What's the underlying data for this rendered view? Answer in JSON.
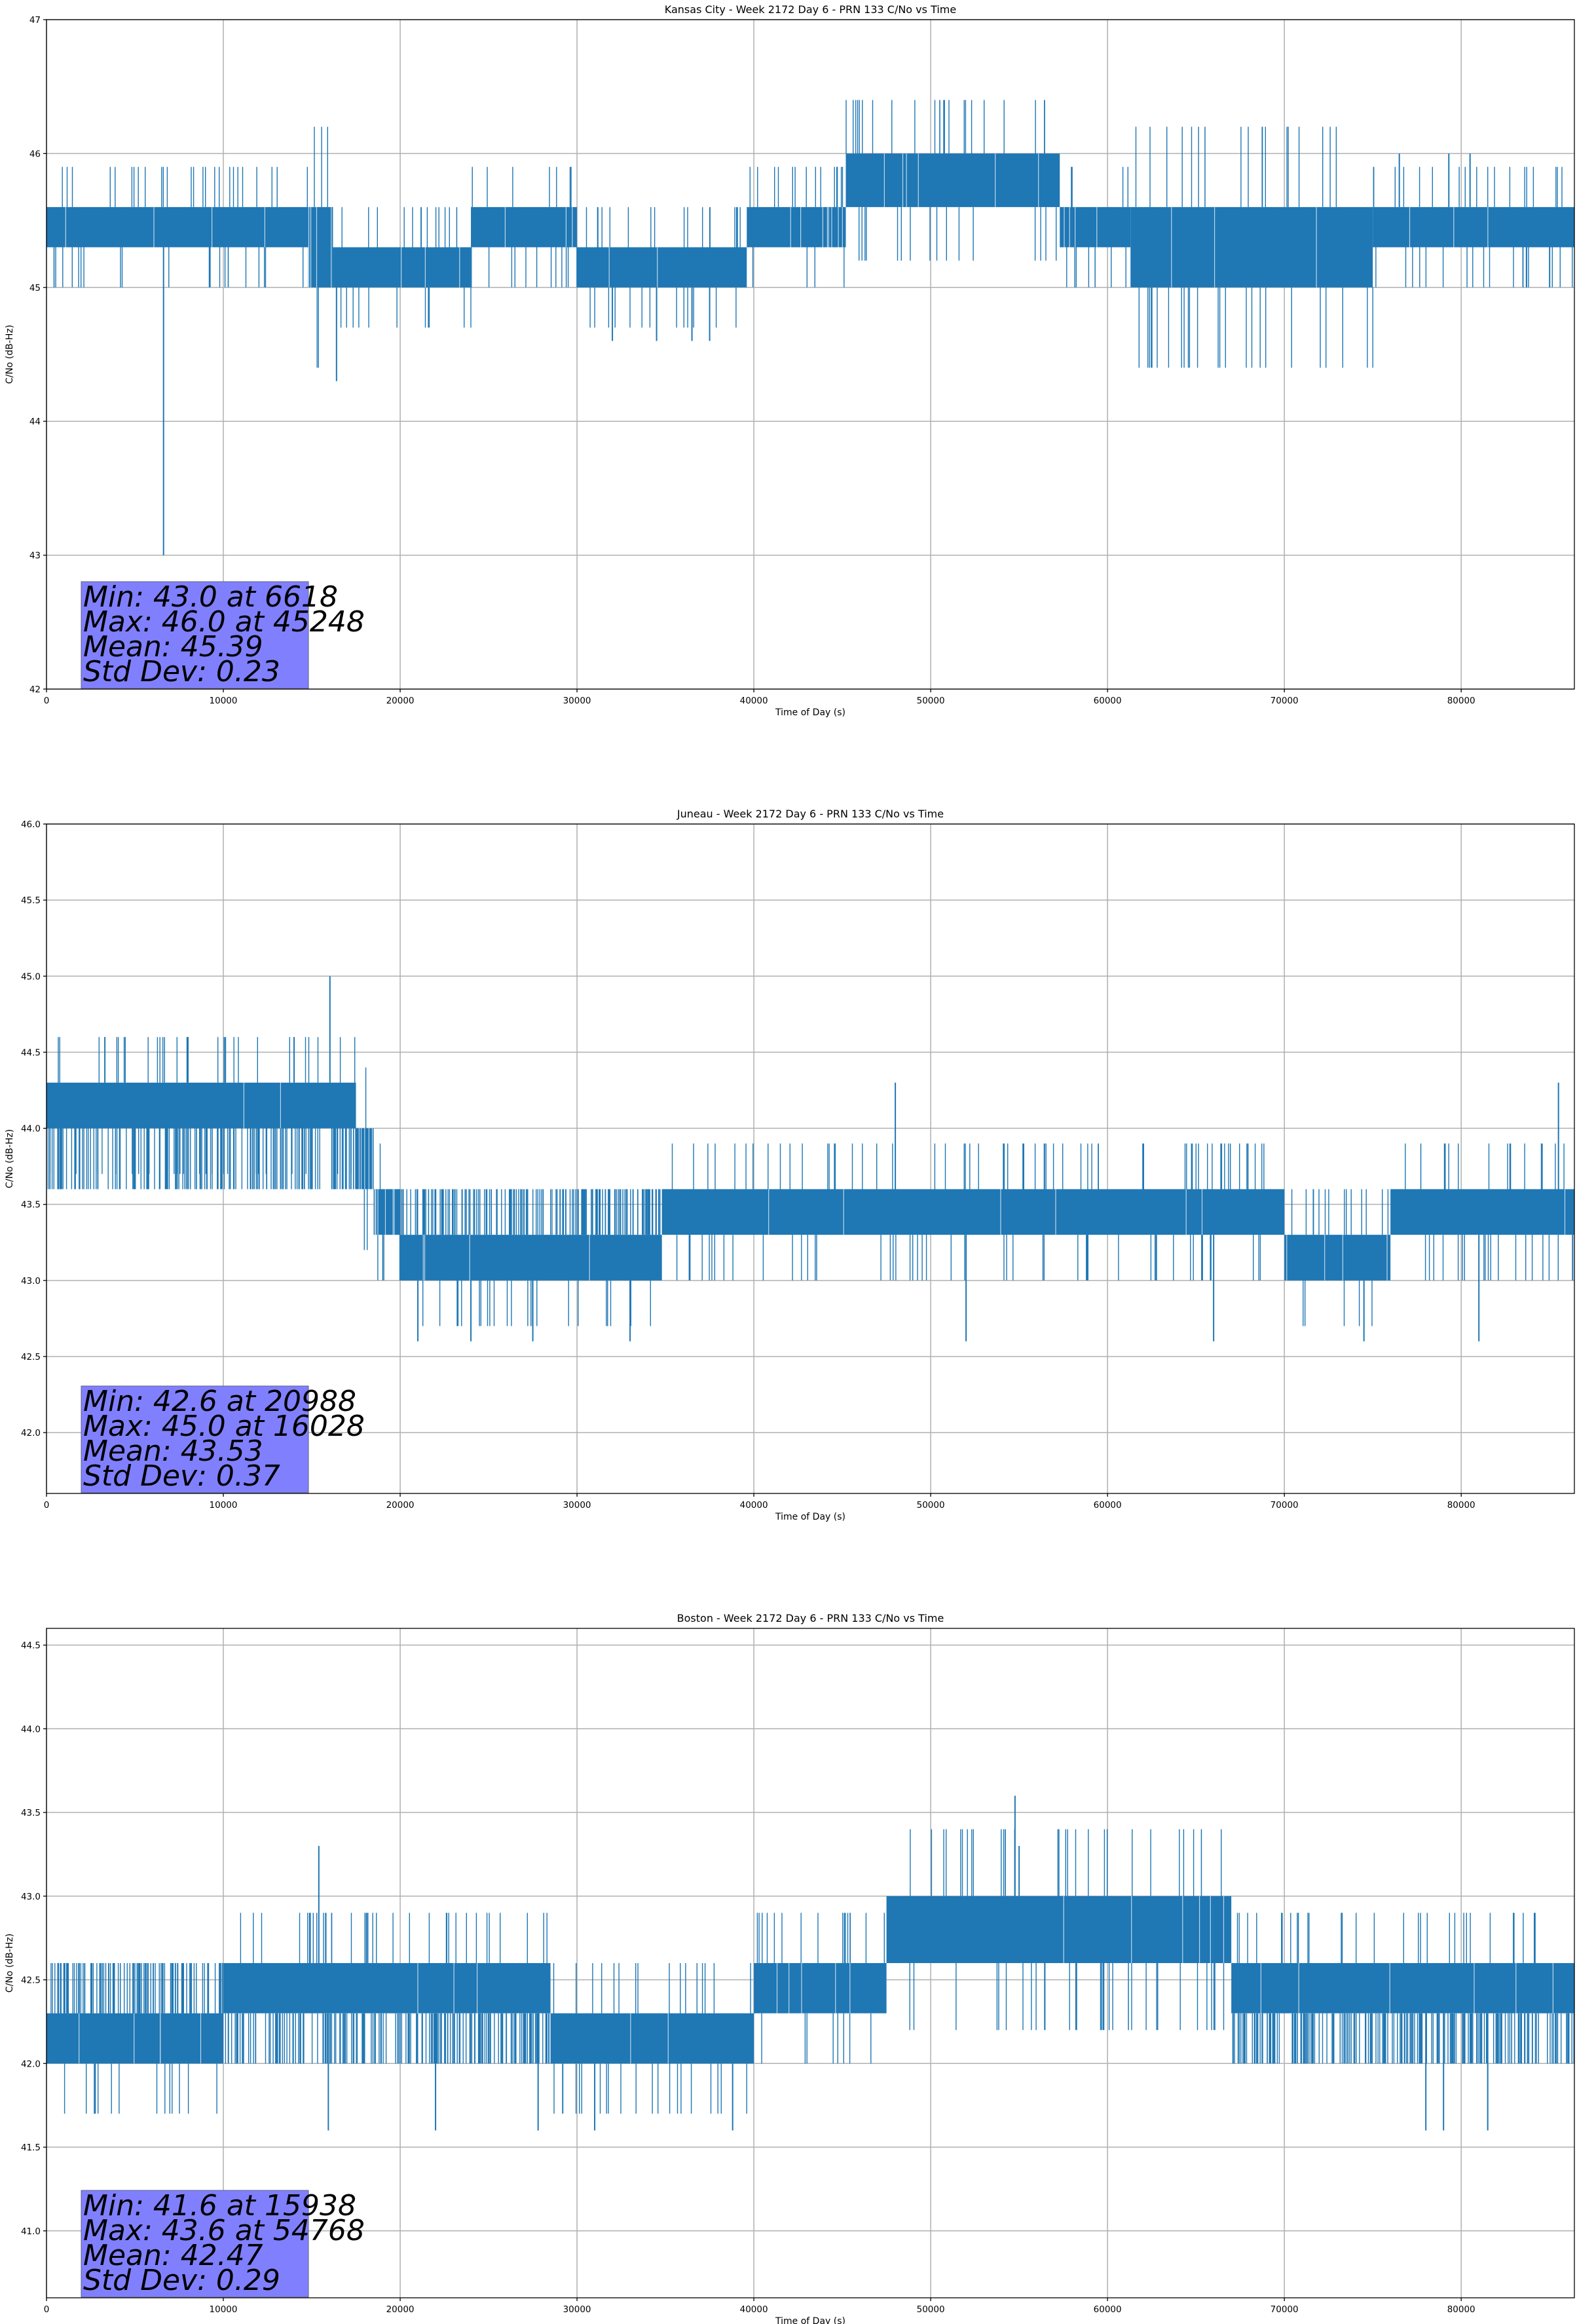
{
  "chart_data": [
    {
      "type": "line",
      "title": "Kansas City - Week 2172 Day 6 - PRN 133 C/No vs Time",
      "xlabel": "Time of Day (s)",
      "ylabel": "C/No (dB-Hz)",
      "xlim": [
        0,
        86400
      ],
      "ylim": [
        42,
        47
      ],
      "xticks": [
        0,
        10000,
        20000,
        30000,
        40000,
        50000,
        60000,
        70000,
        80000
      ],
      "yticks": [
        42,
        43,
        44,
        45,
        46,
        47
      ],
      "ytick_labels": [
        "42",
        "43",
        "44",
        "45",
        "46",
        "47"
      ],
      "grid": true,
      "series_color": "#1f77b4",
      "series": [
        {
          "name": "C/No",
          "segments": [
            {
              "x": [
                0,
                14800
              ],
              "low": 45.3,
              "high": 45.6
            },
            {
              "x": [
                14800,
                16200
              ],
              "low": 45.0,
              "high": 45.6
            },
            {
              "x": [
                16200,
                24000
              ],
              "low": 45.0,
              "high": 45.3
            },
            {
              "x": [
                24000,
                30000
              ],
              "low": 45.3,
              "high": 45.6
            },
            {
              "x": [
                30000,
                39600
              ],
              "low": 45.0,
              "high": 45.3
            },
            {
              "x": [
                39600,
                45200
              ],
              "low": 45.3,
              "high": 45.6
            },
            {
              "x": [
                45200,
                57300
              ],
              "low": 45.6,
              "high": 46.0
            },
            {
              "x": [
                57300,
                61300
              ],
              "low": 45.3,
              "high": 45.6
            },
            {
              "x": [
                61300,
                75000
              ],
              "low": 45.0,
              "high": 45.6
            },
            {
              "x": [
                75000,
                86400
              ],
              "low": 45.3,
              "high": 45.6
            }
          ],
          "spikes": [
            [
              6618,
              43.0
            ],
            [
              16400,
              44.3
            ],
            [
              32000,
              44.6
            ],
            [
              34500,
              44.6
            ],
            [
              36500,
              44.6
            ],
            [
              37500,
              44.6
            ],
            [
              76500,
              46.0
            ],
            [
              79300,
              46.0
            ],
            [
              80500,
              46.0
            ],
            [
              85000,
              45.0
            ]
          ]
        }
      ],
      "stats": [
        "Min: 43.0 at 6618",
        "Max: 46.0 at 45248",
        "Mean: 45.39",
        "Std Dev: 0.23"
      ],
      "stats_box_color": "#8080ff"
    },
    {
      "type": "line",
      "title": "Juneau - Week 2172 Day 6 - PRN 133 C/No vs Time",
      "xlabel": "Time of Day (s)",
      "ylabel": "C/No (dB-Hz)",
      "xlim": [
        0,
        86400
      ],
      "ylim": [
        41.6,
        46.0
      ],
      "xticks": [
        0,
        10000,
        20000,
        30000,
        40000,
        50000,
        60000,
        70000,
        80000
      ],
      "yticks": [
        42.0,
        42.5,
        43.0,
        43.5,
        44.0,
        44.5,
        45.0,
        45.5,
        46.0
      ],
      "ytick_labels": [
        "42.0",
        "42.5",
        "43.0",
        "43.5",
        "44.0",
        "44.5",
        "45.0",
        "45.5",
        "46.0"
      ],
      "grid": true,
      "series_color": "#1f77b4",
      "series": [
        {
          "name": "C/No",
          "segments": [
            {
              "x": [
                0,
                17500
              ],
              "low": 44.0,
              "high": 44.3
            },
            {
              "x": [
                0,
                17500
              ],
              "low": 43.6,
              "high": 44.0,
              "sparse": true
            },
            {
              "x": [
                17500,
                18500
              ],
              "low": 43.6,
              "high": 44.0
            },
            {
              "x": [
                18500,
                20000
              ],
              "low": 43.3,
              "high": 43.6
            },
            {
              "x": [
                20000,
                34800
              ],
              "low": 43.0,
              "high": 43.3
            },
            {
              "x": [
                20000,
                34800
              ],
              "low": 43.3,
              "high": 43.6,
              "sparse": true
            },
            {
              "x": [
                34800,
                70000
              ],
              "low": 43.3,
              "high": 43.6
            },
            {
              "x": [
                70000,
                76000
              ],
              "low": 43.0,
              "high": 43.3
            },
            {
              "x": [
                76000,
                86400
              ],
              "low": 43.3,
              "high": 43.6
            }
          ],
          "spikes": [
            [
              16028,
              45.0
            ],
            [
              3300,
              44.6
            ],
            [
              8000,
              44.6
            ],
            [
              14000,
              44.6
            ],
            [
              21000,
              42.6
            ],
            [
              24000,
              42.6
            ],
            [
              27500,
              42.6
            ],
            [
              33000,
              42.6
            ],
            [
              48000,
              44.3
            ],
            [
              52000,
              42.6
            ],
            [
              66000,
              42.6
            ],
            [
              74500,
              42.6
            ],
            [
              81000,
              42.6
            ],
            [
              85500,
              44.3
            ],
            [
              86300,
              43.0
            ]
          ]
        }
      ],
      "stats": [
        "Min: 42.6 at 20988",
        "Max: 45.0 at 16028",
        "Mean: 43.53",
        "Std Dev: 0.37"
      ],
      "stats_box_color": "#8080ff"
    },
    {
      "type": "line",
      "title": "Boston - Week 2172 Day 6 - PRN 133 C/No vs Time",
      "xlabel": "Time of Day (s)",
      "ylabel": "C/No (dB-Hz)",
      "xlim": [
        0,
        86400
      ],
      "ylim": [
        40.6,
        44.6
      ],
      "xticks": [
        0,
        10000,
        20000,
        30000,
        40000,
        50000,
        60000,
        70000,
        80000
      ],
      "yticks": [
        41.0,
        41.5,
        42.0,
        42.5,
        43.0,
        43.5,
        44.0,
        44.5
      ],
      "ytick_labels": [
        "41.0",
        "41.5",
        "42.0",
        "42.5",
        "43.0",
        "43.5",
        "44.0",
        "44.5"
      ],
      "grid": true,
      "series_color": "#1f77b4",
      "series": [
        {
          "name": "C/No",
          "segments": [
            {
              "x": [
                0,
                10000
              ],
              "low": 42.0,
              "high": 42.3
            },
            {
              "x": [
                0,
                10000
              ],
              "low": 42.3,
              "high": 42.6,
              "sparse": true
            },
            {
              "x": [
                10000,
                28500
              ],
              "low": 42.3,
              "high": 42.6
            },
            {
              "x": [
                10000,
                28500
              ],
              "low": 42.0,
              "high": 42.3,
              "sparse": true
            },
            {
              "x": [
                28500,
                40000
              ],
              "low": 42.0,
              "high": 42.3
            },
            {
              "x": [
                40000,
                47500
              ],
              "low": 42.3,
              "high": 42.6
            },
            {
              "x": [
                47500,
                67000
              ],
              "low": 42.6,
              "high": 43.0
            },
            {
              "x": [
                67000,
                86400
              ],
              "low": 42.3,
              "high": 42.6
            },
            {
              "x": [
                67000,
                86400
              ],
              "low": 42.0,
              "high": 42.3,
              "sparse": true
            }
          ],
          "spikes": [
            [
              15938,
              41.6
            ],
            [
              15400,
              43.3
            ],
            [
              22000,
              41.6
            ],
            [
              27800,
              41.6
            ],
            [
              31000,
              41.6
            ],
            [
              38800,
              41.6
            ],
            [
              54768,
              43.6
            ],
            [
              55000,
              43.3
            ],
            [
              78000,
              41.6
            ],
            [
              79000,
              41.6
            ],
            [
              81500,
              41.6
            ]
          ]
        }
      ],
      "stats": [
        "Min: 41.6 at 15938",
        "Max: 43.6 at 54768",
        "Mean: 42.47",
        "Std Dev: 0.29"
      ],
      "stats_box_color": "#8080ff"
    }
  ]
}
